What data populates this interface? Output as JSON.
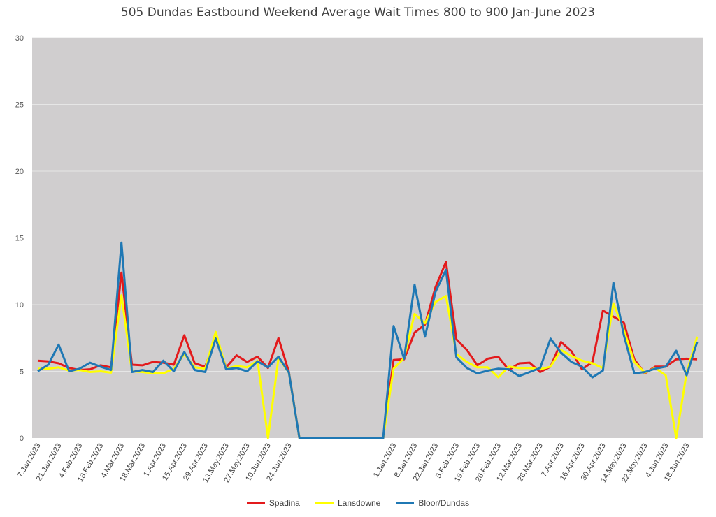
{
  "chart_data": {
    "type": "line",
    "title": "505 Dundas Eastbound Weekend Average Wait Times 800 to 900 Jan-June 2023",
    "ylim": [
      0,
      30
    ],
    "yticks": [
      "0",
      "5",
      "10",
      "15",
      "20",
      "25",
      "30"
    ],
    "ytick_values": [
      0,
      5,
      10,
      15,
      20,
      25,
      30
    ],
    "grid": true,
    "legend_placement": "bottom",
    "plot_background": "#d0cecf",
    "x_labels": [
      "7.Jan.2023",
      "21.Jan.2023",
      "4.Feb.2023",
      "18.Feb.2023",
      "4.Mar.2023",
      "18.Mar.2023",
      "1.Apr.2023",
      "15.Apr.2023",
      "29.Apr.2023",
      "13.May.2023",
      "27.May.2023",
      "10.Jun.2023",
      "24.Jun.2023",
      "1.Jan.2023",
      "8.Jan.2023",
      "22.Jan.2023",
      "5.Feb.2023",
      "19.Feb.2023",
      "26.Feb.2023",
      "12.Mar.2023",
      "26.Mar.2023",
      "7.Apr.2023",
      "16.Apr.2023",
      "30.Apr.2023",
      "14.May.2023",
      "22.May.2023",
      "4.Jun.2023",
      "18.Jun.2023"
    ],
    "x_label_positions": [
      0,
      2,
      4,
      6,
      8,
      10,
      12,
      14,
      16,
      18,
      20,
      22,
      24,
      34,
      36,
      38,
      40,
      42,
      44,
      46,
      48,
      50,
      52,
      54,
      56,
      58,
      60,
      62
    ],
    "n_points": 64,
    "series": [
      {
        "name": "Spadina",
        "color": "#e31a1c",
        "values": [
          5.8,
          5.75,
          5.6,
          5.25,
          5.1,
          5.15,
          5.45,
          5.3,
          12.4,
          5.5,
          5.45,
          5.7,
          5.65,
          5.5,
          7.7,
          5.6,
          5.35,
          7.5,
          5.3,
          6.2,
          5.7,
          6.1,
          5.25,
          7.5,
          4.95,
          0,
          0,
          0,
          0,
          0,
          0,
          0,
          0,
          0,
          5.85,
          5.9,
          7.9,
          8.5,
          11.3,
          13.2,
          7.4,
          6.6,
          5.45,
          5.95,
          6.1,
          5.1,
          5.6,
          5.65,
          4.95,
          5.35,
          7.2,
          6.5,
          5.15,
          5.7,
          9.55,
          9.1,
          8.65,
          5.9,
          4.85,
          5.35,
          5.35,
          5.9,
          5.95,
          5.9
        ]
      },
      {
        "name": "Lansdowne",
        "color": "#ffff00",
        "values": [
          5.2,
          5.2,
          5.3,
          5.05,
          5.1,
          4.95,
          5.0,
          4.9,
          10.7,
          5.0,
          4.95,
          4.85,
          4.85,
          5.2,
          6.3,
          5.3,
          5.2,
          7.95,
          5.2,
          5.4,
          5.3,
          5.8,
          0,
          6.0,
          4.9,
          0,
          0,
          0,
          0,
          0,
          0,
          0,
          0,
          0,
          5.2,
          6.0,
          9.3,
          8.6,
          10.2,
          10.65,
          6.3,
          5.7,
          5.3,
          5.3,
          4.55,
          5.35,
          5.25,
          5.25,
          5.15,
          5.35,
          6.6,
          6.15,
          5.8,
          5.6,
          5.25,
          10.1,
          8.1,
          5.7,
          4.9,
          5.25,
          4.7,
          0,
          4.9,
          7.6
        ]
      },
      {
        "name": "Bloor/Dundas",
        "color": "#1f78b4",
        "values": [
          5.0,
          5.5,
          7.0,
          5.0,
          5.2,
          5.65,
          5.35,
          5.1,
          14.65,
          4.95,
          5.1,
          4.95,
          5.8,
          5.0,
          6.45,
          5.1,
          4.95,
          7.45,
          5.15,
          5.25,
          5.0,
          5.75,
          5.3,
          6.1,
          4.9,
          0,
          0,
          0,
          0,
          0,
          0,
          0,
          0,
          0,
          8.4,
          5.95,
          11.5,
          7.6,
          10.95,
          12.6,
          6.05,
          5.25,
          4.85,
          5.05,
          5.2,
          5.15,
          4.65,
          4.95,
          5.25,
          7.45,
          6.4,
          5.7,
          5.35,
          4.55,
          5.05,
          11.65,
          7.7,
          4.85,
          4.95,
          5.2,
          5.35,
          6.55,
          4.7,
          7.2
        ]
      }
    ]
  }
}
